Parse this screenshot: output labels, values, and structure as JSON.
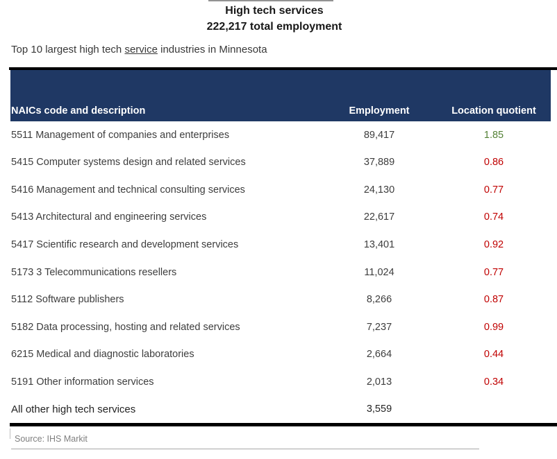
{
  "title": {
    "line1": "High tech services",
    "line2": "222,217 total employment"
  },
  "subtitle": {
    "prefix": "Top 10 largest high tech ",
    "underlined": "service",
    "suffix": " industries in Minnesota"
  },
  "colors": {
    "header_navy": "#1f3864",
    "lq_positive_green": "#538135",
    "lq_negative_red": "#c00000",
    "rule_black": "#000000",
    "source_gray": "#7f7f7f"
  },
  "chart_data": {
    "type": "table",
    "title": "High tech services",
    "subtitle": "222,217 total employment",
    "caption": "Top 10 largest high tech service industries in Minnesota",
    "columns": [
      "NAICs code and description",
      "Employment",
      "Location quotient"
    ],
    "rows": [
      {
        "description": "5511 Management of companies and enterprises",
        "employment": "89,417",
        "lq": "1.85",
        "lq_color": "#538135"
      },
      {
        "description": "5415 Computer systems design and related services",
        "employment": "37,889",
        "lq": "0.86",
        "lq_color": "#c00000"
      },
      {
        "description": "5416 Management and technical consulting services",
        "employment": "24,130",
        "lq": "0.77",
        "lq_color": "#c00000"
      },
      {
        "description": "5413 Architectural and engineering services",
        "employment": "22,617",
        "lq": "0.74",
        "lq_color": "#c00000"
      },
      {
        "description": "5417 Scientific research and development services",
        "employment": "13,401",
        "lq": "0.92",
        "lq_color": "#c00000"
      },
      {
        "description": "5173 3 Telecommunications resellers",
        "employment": "11,024",
        "lq": "0.77",
        "lq_color": "#c00000"
      },
      {
        "description": "5112 Software publishers",
        "employment": "8,266",
        "lq": "0.87",
        "lq_color": "#c00000"
      },
      {
        "description": "5182 Data processing, hosting and related services",
        "employment": "7,237",
        "lq": "0.99",
        "lq_color": "#c00000"
      },
      {
        "description": "6215 Medical and diagnostic laboratories",
        "employment": "2,664",
        "lq": "0.44",
        "lq_color": "#c00000"
      },
      {
        "description": "5191 Other information services",
        "employment": "2,013",
        "lq": "0.34",
        "lq_color": "#c00000"
      }
    ],
    "footer_row": {
      "description": "All other high tech services",
      "employment": "3,559",
      "lq": ""
    },
    "source": "Source: IHS Markit"
  }
}
